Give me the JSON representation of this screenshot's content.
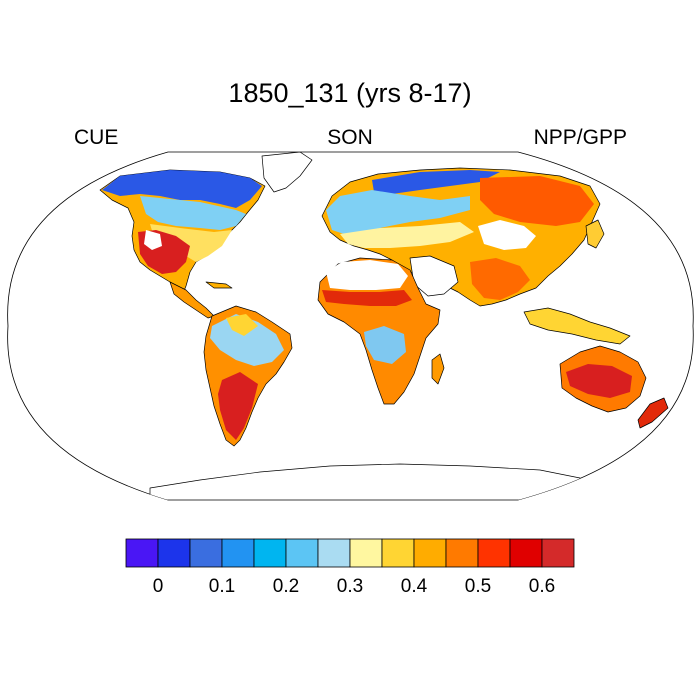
{
  "title": "1850_131 (yrs 8-17)",
  "left_label": "CUE",
  "center_label": "SON",
  "right_label": "NPP/GPP",
  "colorbar": {
    "colors": [
      "#4a16f5",
      "#1c34eb",
      "#3a6ee0",
      "#2293f2",
      "#00b5f0",
      "#5cc5f4",
      "#aadcf2",
      "#fff7a0",
      "#ffd533",
      "#ffac00",
      "#ff7a00",
      "#ff3300",
      "#e00000",
      "#d42a2a"
    ],
    "tick_labels": [
      "0",
      "0.1",
      "0.2",
      "0.3",
      "0.4",
      "0.5",
      "0.6"
    ]
  },
  "map": {
    "projection": "Robinson",
    "ocean_color": "#ffffff",
    "coast_color": "#000000"
  }
}
